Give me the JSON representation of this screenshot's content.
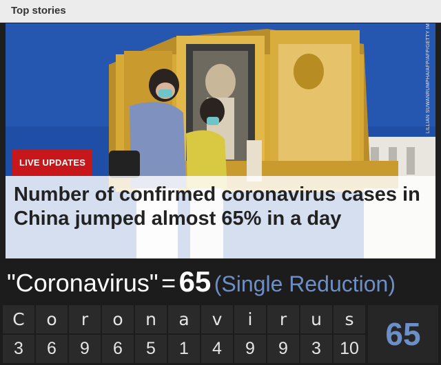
{
  "section": {
    "label": "Top stories"
  },
  "hero": {
    "photo_credit": "LILLIAN SUWANRUMPHA/AFP/AFP/GETTY IMAGES",
    "badge": "LIVE UPDATES",
    "headline": "Number of confirmed coronavirus cases in China jumped almost 65% in a day"
  },
  "equation": {
    "quoted_word": "\"Coronavirus\"",
    "equals": "=",
    "result": "65",
    "note": "(Single Reduction)"
  },
  "cipher": {
    "letters": [
      "C",
      "o",
      "r",
      "o",
      "n",
      "a",
      "v",
      "i",
      "r",
      "u",
      "s"
    ],
    "values": [
      "3",
      "6",
      "9",
      "6",
      "5",
      "1",
      "4",
      "9",
      "9",
      "3",
      "10"
    ],
    "total": "65"
  },
  "colors": {
    "badge": "#c8171a",
    "accent_blue": "#6d8fc8",
    "sky": "#1f4ea6",
    "gold": "#d7a936"
  }
}
